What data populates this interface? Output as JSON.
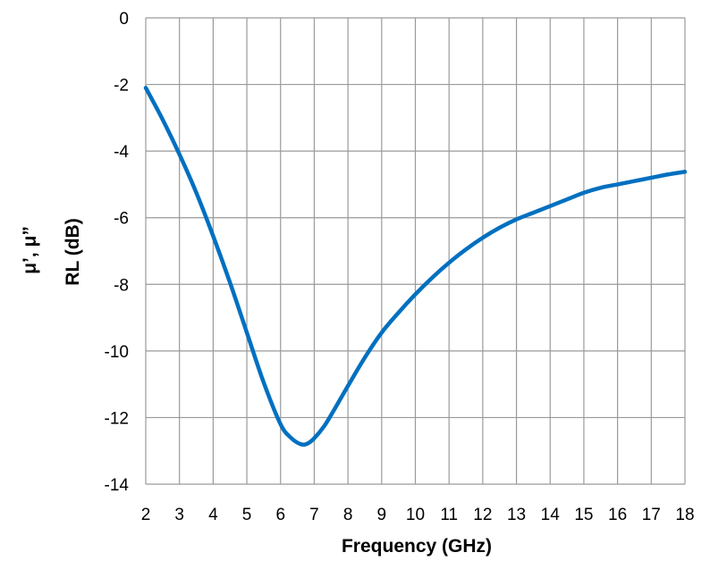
{
  "chart_data": {
    "type": "line",
    "title": "",
    "xlabel": "Frequency (GHz)",
    "ylabel_lines": [
      "μ’, μ”",
      "RL (dB)"
    ],
    "xlim": [
      2,
      18
    ],
    "ylim": [
      -14,
      0
    ],
    "x_ticks": [
      2,
      3,
      4,
      5,
      6,
      7,
      8,
      9,
      10,
      11,
      12,
      13,
      14,
      15,
      16,
      17,
      18
    ],
    "x_tick_labels": [
      "2",
      "3",
      "4",
      "5",
      "6",
      "7",
      "8",
      "9",
      "10",
      "11",
      "12",
      "13",
      "14",
      "15",
      "16",
      "17",
      "18"
    ],
    "y_ticks": [
      0,
      -2,
      -4,
      -6,
      -8,
      -10,
      -12,
      -14
    ],
    "y_tick_labels": [
      "0",
      "-2",
      "-4",
      "-6",
      "-8",
      "-10",
      "-12",
      "-14"
    ],
    "grid": true,
    "legend": "none",
    "series": [
      {
        "color": "#0070C0",
        "x": [
          2,
          2.5,
          3,
          3.5,
          4,
          4.5,
          5,
          5.5,
          6,
          6.3,
          6.6,
          6.8,
          7,
          7.3,
          7.6,
          8,
          8.5,
          9,
          9.5,
          10,
          10.5,
          11,
          11.5,
          12,
          12.5,
          13,
          13.5,
          14,
          14.5,
          15,
          15.5,
          16,
          16.5,
          17,
          17.5,
          18
        ],
        "y": [
          -2.1,
          -3.05,
          -4.1,
          -5.25,
          -6.55,
          -7.95,
          -9.45,
          -10.95,
          -12.2,
          -12.6,
          -12.8,
          -12.78,
          -12.62,
          -12.25,
          -11.75,
          -11.05,
          -10.2,
          -9.45,
          -8.85,
          -8.3,
          -7.8,
          -7.35,
          -6.95,
          -6.6,
          -6.3,
          -6.05,
          -5.85,
          -5.65,
          -5.45,
          -5.25,
          -5.1,
          -5.0,
          -4.9,
          -4.8,
          -4.7,
          -4.62
        ]
      }
    ]
  }
}
